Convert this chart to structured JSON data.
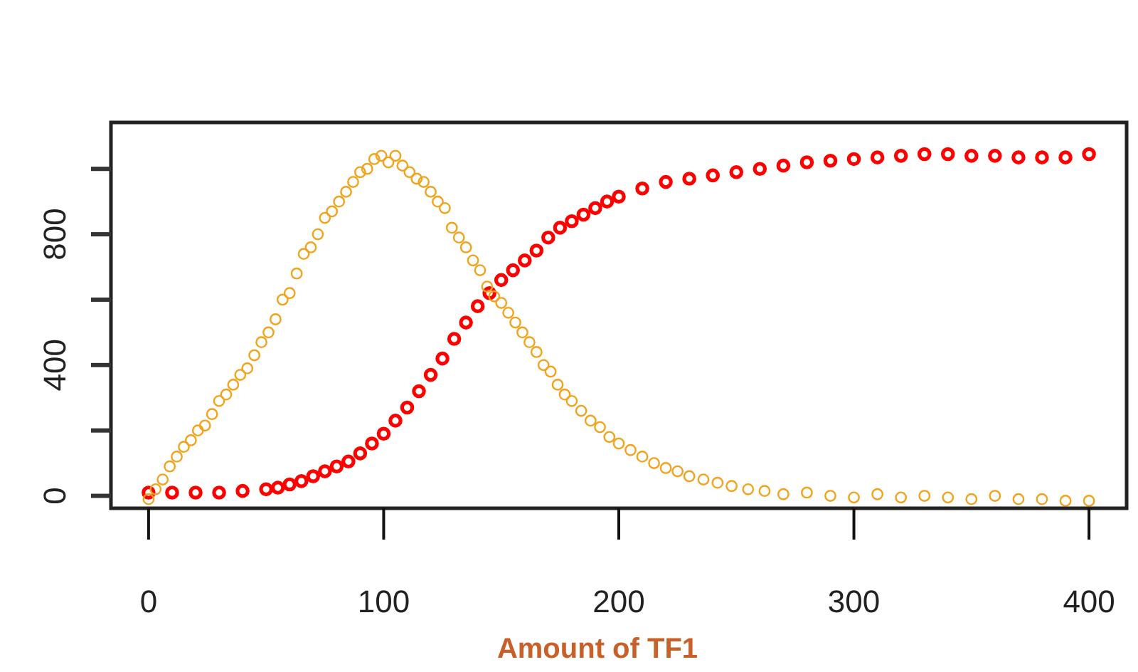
{
  "chart_data": {
    "type": "scatter",
    "xlabel": "Amount of TF1",
    "xlim": [
      -16,
      416
    ],
    "xticks": [
      0,
      100,
      200,
      300,
      400
    ],
    "ylim": [
      -38,
      1142
    ],
    "yticks": [
      0,
      {
        "value": 200,
        "label": null
      },
      400,
      {
        "value": 600,
        "label": null
      },
      800,
      {
        "value": 1000,
        "label": null
      }
    ],
    "grid": false,
    "marker": "circle",
    "series": [
      {
        "color": "#ff0000",
        "x": [
          0,
          10,
          20,
          30,
          40,
          50,
          55,
          60,
          65,
          70,
          75,
          80,
          85,
          90,
          95,
          100,
          105,
          110,
          115,
          120,
          125,
          130,
          135,
          140,
          145,
          150,
          155,
          160,
          165,
          170,
          175,
          180,
          185,
          190,
          195,
          200,
          210,
          220,
          230,
          240,
          250,
          260,
          270,
          280,
          290,
          300,
          310,
          320,
          330,
          340,
          350,
          360,
          370,
          380,
          390,
          400
        ],
        "values": [
          10,
          10,
          10,
          10,
          15,
          20,
          25,
          35,
          45,
          60,
          75,
          90,
          105,
          130,
          160,
          190,
          230,
          270,
          320,
          370,
          420,
          480,
          530,
          580,
          620,
          660,
          690,
          720,
          750,
          790,
          820,
          840,
          860,
          880,
          900,
          915,
          940,
          960,
          970,
          980,
          990,
          1000,
          1010,
          1020,
          1025,
          1030,
          1035,
          1040,
          1045,
          1045,
          1040,
          1040,
          1035,
          1035,
          1035,
          1045
        ]
      },
      {
        "color": "#f2a31b",
        "x": [
          0,
          3,
          6,
          9,
          12,
          15,
          18,
          21,
          24,
          27,
          30,
          33,
          36,
          39,
          42,
          45,
          48,
          51,
          54,
          57,
          60,
          63,
          66,
          69,
          72,
          75,
          78,
          81,
          84,
          87,
          90,
          93,
          96,
          99,
          102,
          105,
          108,
          111,
          114,
          117,
          120,
          123,
          126,
          129,
          132,
          135,
          138,
          141,
          144,
          147,
          150,
          153,
          156,
          159,
          162,
          165,
          168,
          171,
          174,
          177,
          180,
          184,
          188,
          192,
          196,
          200,
          205,
          210,
          215,
          220,
          225,
          230,
          236,
          242,
          248,
          255,
          262,
          270,
          280,
          290,
          300,
          310,
          320,
          330,
          340,
          350,
          360,
          370,
          380,
          390,
          400
        ],
        "values": [
          -10,
          20,
          50,
          90,
          120,
          150,
          170,
          200,
          215,
          250,
          290,
          310,
          340,
          370,
          390,
          430,
          470,
          500,
          540,
          600,
          620,
          680,
          740,
          760,
          800,
          850,
          870,
          900,
          930,
          960,
          990,
          1000,
          1030,
          1040,
          1020,
          1040,
          1010,
          990,
          970,
          960,
          930,
          900,
          880,
          820,
          790,
          760,
          720,
          690,
          640,
          610,
          590,
          560,
          530,
          500,
          470,
          440,
          400,
          380,
          340,
          310,
          290,
          260,
          230,
          210,
          180,
          160,
          140,
          120,
          100,
          85,
          75,
          60,
          50,
          40,
          30,
          20,
          15,
          5,
          10,
          0,
          -5,
          5,
          -5,
          0,
          -5,
          -10,
          0,
          -10,
          -10,
          -15,
          -15
        ]
      }
    ]
  }
}
